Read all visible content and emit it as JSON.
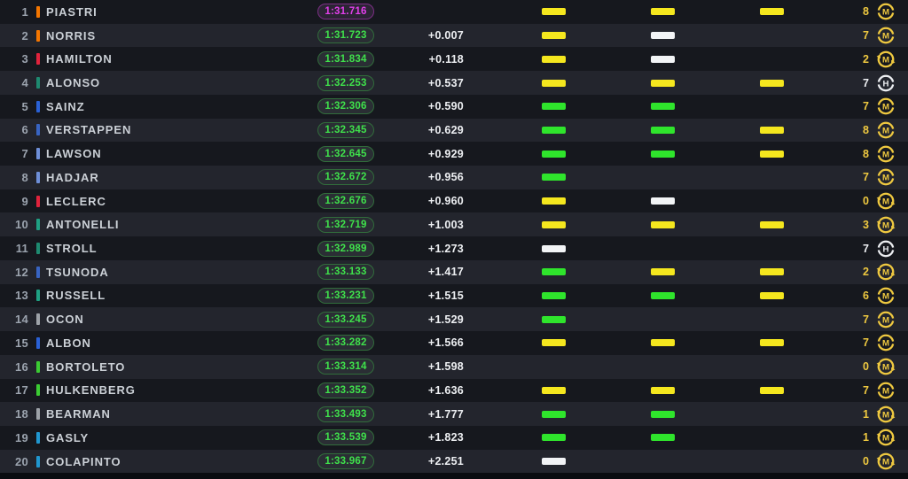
{
  "colors": {
    "row_dark": "#16181e",
    "row_light": "#23252d",
    "sector": {
      "yellow": "#F5E71E",
      "green": "#2FE52C",
      "white": "#F2F4F6"
    },
    "tyre": {
      "M": "#EFC940",
      "H": "#EDEFF2"
    },
    "time_green": "#3FE14B",
    "time_fastest": "#E23FEB",
    "team": {
      "mclaren": "#F47600",
      "ferrari": "#E0233C",
      "aston_martin": "#1E8A70",
      "williams": "#2A61D6",
      "red_bull": "#3864C2",
      "racing_bulls": "#6E8FD8",
      "mercedes": "#1FA183",
      "haas": "#9DA2A8",
      "sauber": "#3BCB33",
      "alpine": "#2097D0"
    }
  },
  "rows": [
    {
      "pos": "1",
      "driver": "PIASTRI",
      "team_color": "#F47600",
      "time": "1:31.716",
      "time_style": "fastest",
      "gap": "",
      "sectors": [
        "yellow",
        "yellow",
        "yellow"
      ],
      "laps": "8",
      "tyre": {
        "compound": "M",
        "used": false
      }
    },
    {
      "pos": "2",
      "driver": "NORRIS",
      "team_color": "#F47600",
      "time": "1:31.723",
      "time_style": "green",
      "gap": "+0.007",
      "sectors": [
        "yellow",
        "white",
        null
      ],
      "laps": "7",
      "tyre": {
        "compound": "M",
        "used": false
      }
    },
    {
      "pos": "3",
      "driver": "HAMILTON",
      "team_color": "#E0233C",
      "time": "1:31.834",
      "time_style": "green",
      "gap": "+0.118",
      "sectors": [
        "yellow",
        "white",
        null
      ],
      "laps": "2",
      "tyre": {
        "compound": "M",
        "used": true
      }
    },
    {
      "pos": "4",
      "driver": "ALONSO",
      "team_color": "#1E8A70",
      "time": "1:32.253",
      "time_style": "green",
      "gap": "+0.537",
      "sectors": [
        "yellow",
        "yellow",
        "yellow"
      ],
      "laps": "7",
      "tyre": {
        "compound": "H",
        "used": false
      }
    },
    {
      "pos": "5",
      "driver": "SAINZ",
      "team_color": "#2A61D6",
      "time": "1:32.306",
      "time_style": "green",
      "gap": "+0.590",
      "sectors": [
        "green",
        "green",
        null
      ],
      "laps": "7",
      "tyre": {
        "compound": "M",
        "used": false
      }
    },
    {
      "pos": "6",
      "driver": "VERSTAPPEN",
      "team_color": "#3864C2",
      "time": "1:32.345",
      "time_style": "green",
      "gap": "+0.629",
      "sectors": [
        "green",
        "green",
        "yellow"
      ],
      "laps": "8",
      "tyre": {
        "compound": "M",
        "used": false
      }
    },
    {
      "pos": "7",
      "driver": "LAWSON",
      "team_color": "#6E8FD8",
      "time": "1:32.645",
      "time_style": "green",
      "gap": "+0.929",
      "sectors": [
        "green",
        "green",
        "yellow"
      ],
      "laps": "8",
      "tyre": {
        "compound": "M",
        "used": false
      }
    },
    {
      "pos": "8",
      "driver": "HADJAR",
      "team_color": "#6E8FD8",
      "time": "1:32.672",
      "time_style": "green",
      "gap": "+0.956",
      "sectors": [
        "green",
        null,
        null
      ],
      "laps": "7",
      "tyre": {
        "compound": "M",
        "used": false
      }
    },
    {
      "pos": "9",
      "driver": "LECLERC",
      "team_color": "#E0233C",
      "time": "1:32.676",
      "time_style": "green",
      "gap": "+0.960",
      "sectors": [
        "yellow",
        "white",
        null
      ],
      "laps": "0",
      "tyre": {
        "compound": "M",
        "used": true
      }
    },
    {
      "pos": "10",
      "driver": "ANTONELLI",
      "team_color": "#1FA183",
      "time": "1:32.719",
      "time_style": "green",
      "gap": "+1.003",
      "sectors": [
        "yellow",
        "yellow",
        "yellow"
      ],
      "laps": "3",
      "tyre": {
        "compound": "M",
        "used": true
      }
    },
    {
      "pos": "11",
      "driver": "STROLL",
      "team_color": "#1E8A70",
      "time": "1:32.989",
      "time_style": "green",
      "gap": "+1.273",
      "sectors": [
        "white",
        null,
        null
      ],
      "laps": "7",
      "tyre": {
        "compound": "H",
        "used": false
      }
    },
    {
      "pos": "12",
      "driver": "TSUNODA",
      "team_color": "#3864C2",
      "time": "1:33.133",
      "time_style": "green",
      "gap": "+1.417",
      "sectors": [
        "green",
        "yellow",
        "yellow"
      ],
      "laps": "2",
      "tyre": {
        "compound": "M",
        "used": true
      }
    },
    {
      "pos": "13",
      "driver": "RUSSELL",
      "team_color": "#1FA183",
      "time": "1:33.231",
      "time_style": "green",
      "gap": "+1.515",
      "sectors": [
        "green",
        "green",
        "yellow"
      ],
      "laps": "6",
      "tyre": {
        "compound": "M",
        "used": false
      }
    },
    {
      "pos": "14",
      "driver": "OCON",
      "team_color": "#9DA2A8",
      "time": "1:33.245",
      "time_style": "green",
      "gap": "+1.529",
      "sectors": [
        "green",
        null,
        null
      ],
      "laps": "7",
      "tyre": {
        "compound": "M",
        "used": false
      }
    },
    {
      "pos": "15",
      "driver": "ALBON",
      "team_color": "#2A61D6",
      "time": "1:33.282",
      "time_style": "green",
      "gap": "+1.566",
      "sectors": [
        "yellow",
        "yellow",
        "yellow"
      ],
      "laps": "7",
      "tyre": {
        "compound": "M",
        "used": false
      }
    },
    {
      "pos": "16",
      "driver": "BORTOLETO",
      "team_color": "#3BCB33",
      "time": "1:33.314",
      "time_style": "green",
      "gap": "+1.598",
      "sectors": [
        null,
        null,
        null
      ],
      "laps": "0",
      "tyre": {
        "compound": "M",
        "used": true
      }
    },
    {
      "pos": "17",
      "driver": "HULKENBERG",
      "team_color": "#3BCB33",
      "time": "1:33.352",
      "time_style": "green",
      "gap": "+1.636",
      "sectors": [
        "yellow",
        "yellow",
        "yellow"
      ],
      "laps": "7",
      "tyre": {
        "compound": "M",
        "used": false
      }
    },
    {
      "pos": "18",
      "driver": "BEARMAN",
      "team_color": "#9DA2A8",
      "time": "1:33.493",
      "time_style": "green",
      "gap": "+1.777",
      "sectors": [
        "green",
        "green",
        null
      ],
      "laps": "1",
      "tyre": {
        "compound": "M",
        "used": true
      }
    },
    {
      "pos": "19",
      "driver": "GASLY",
      "team_color": "#2097D0",
      "time": "1:33.539",
      "time_style": "green",
      "gap": "+1.823",
      "sectors": [
        "green",
        "green",
        null
      ],
      "laps": "1",
      "tyre": {
        "compound": "M",
        "used": true
      }
    },
    {
      "pos": "20",
      "driver": "COLAPINTO",
      "team_color": "#2097D0",
      "time": "1:33.967",
      "time_style": "green",
      "gap": "+2.251",
      "sectors": [
        "white",
        null,
        null
      ],
      "laps": "0",
      "tyre": {
        "compound": "M",
        "used": true
      }
    }
  ]
}
